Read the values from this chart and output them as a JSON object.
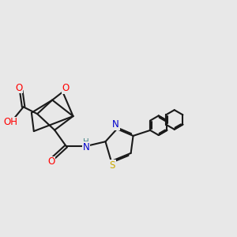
{
  "bg_color": "#e8e8e8",
  "bond_color": "#1a1a1a",
  "bond_width": 1.5,
  "atom_colors": {
    "O": "#ff0000",
    "N": "#0000cd",
    "S": "#ccaa00",
    "H_color": "#4a8a8a",
    "C": "#1a1a1a"
  },
  "figsize": [
    3.0,
    3.0
  ],
  "dpi": 100,
  "xlim": [
    0,
    10
  ],
  "ylim": [
    1,
    8
  ]
}
